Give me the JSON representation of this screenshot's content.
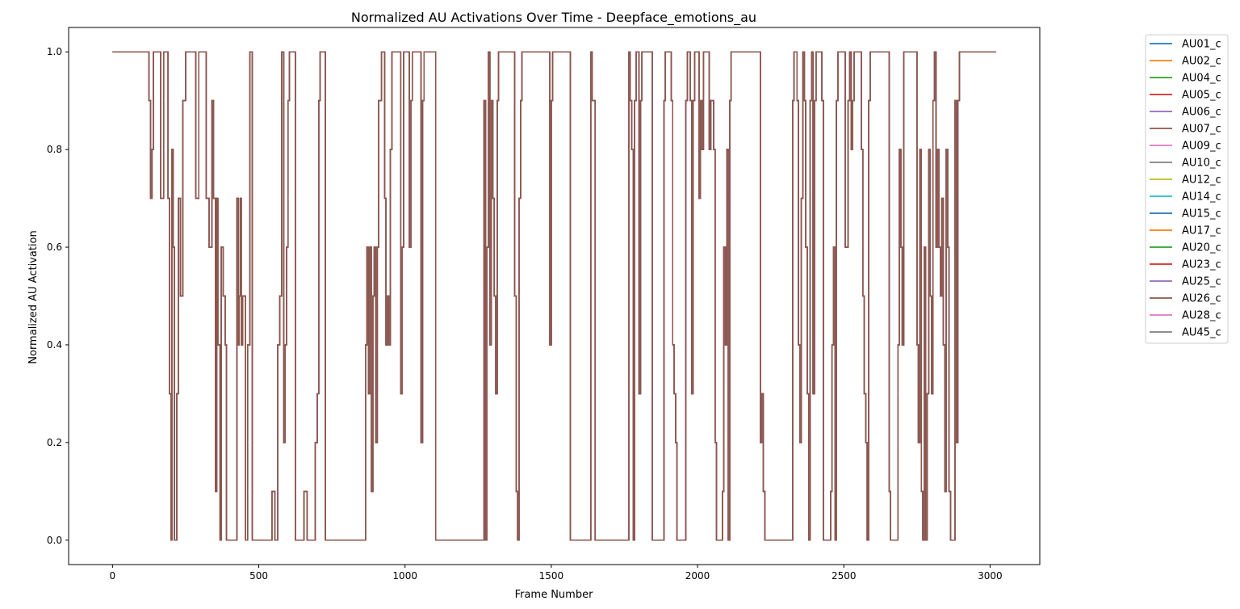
{
  "chart_data": {
    "type": "line",
    "title": "Normalized AU Activations Over Time - Deepface_emotions_au",
    "xlabel": "Frame Number",
    "ylabel": "Normalized AU Activation",
    "xlim": [
      -150,
      3170
    ],
    "ylim": [
      -0.05,
      1.05
    ],
    "xticks": [
      0,
      500,
      1000,
      1500,
      2000,
      2500,
      3000
    ],
    "yticks": [
      0.0,
      0.2,
      0.4,
      0.6,
      0.8,
      1.0
    ],
    "xtick_labels": [
      "0",
      "500",
      "1000",
      "1500",
      "2000",
      "2500",
      "3000"
    ],
    "ytick_labels": [
      "0.0",
      "0.2",
      "0.4",
      "0.6",
      "0.8",
      "1.0"
    ],
    "grid": false,
    "legend_position": "outside-right-top",
    "line_style": "step",
    "visible_series_color": "#8c564b",
    "series": [
      {
        "name": "AU01_c",
        "color": "#1f77b4"
      },
      {
        "name": "AU02_c",
        "color": "#ff7f0e"
      },
      {
        "name": "AU04_c",
        "color": "#2ca02c"
      },
      {
        "name": "AU05_c",
        "color": "#d62728"
      },
      {
        "name": "AU06_c",
        "color": "#9467bd"
      },
      {
        "name": "AU07_c",
        "color": "#8c564b"
      },
      {
        "name": "AU09_c",
        "color": "#e377c2"
      },
      {
        "name": "AU10_c",
        "color": "#7f7f7f"
      },
      {
        "name": "AU12_c",
        "color": "#bcbd22"
      },
      {
        "name": "AU14_c",
        "color": "#17becf"
      },
      {
        "name": "AU15_c",
        "color": "#1f77b4"
      },
      {
        "name": "AU17_c",
        "color": "#ff7f0e"
      },
      {
        "name": "AU20_c",
        "color": "#2ca02c"
      },
      {
        "name": "AU23_c",
        "color": "#d62728"
      },
      {
        "name": "AU25_c",
        "color": "#9467bd"
      },
      {
        "name": "AU26_c",
        "color": "#8c564b"
      },
      {
        "name": "AU28_c",
        "color": "#e377c2"
      },
      {
        "name": "AU45_c",
        "color": "#7f7f7f"
      }
    ],
    "points": [
      [
        0,
        1.0
      ],
      [
        120,
        1.0
      ],
      [
        125,
        0.9
      ],
      [
        130,
        0.7
      ],
      [
        135,
        0.8
      ],
      [
        140,
        1.0
      ],
      [
        160,
        1.0
      ],
      [
        165,
        0.7
      ],
      [
        175,
        1.0
      ],
      [
        185,
        1.0
      ],
      [
        190,
        0.7
      ],
      [
        195,
        0.3
      ],
      [
        200,
        0.0
      ],
      [
        203,
        0.8
      ],
      [
        207,
        0.6
      ],
      [
        212,
        0.0
      ],
      [
        220,
        0.3
      ],
      [
        225,
        0.7
      ],
      [
        232,
        0.5
      ],
      [
        240,
        0.9
      ],
      [
        250,
        1.0
      ],
      [
        280,
        1.0
      ],
      [
        285,
        0.7
      ],
      [
        295,
        1.0
      ],
      [
        315,
        1.0
      ],
      [
        320,
        0.7
      ],
      [
        330,
        0.6
      ],
      [
        340,
        0.9
      ],
      [
        345,
        0.7
      ],
      [
        352,
        0.1
      ],
      [
        356,
        0.7
      ],
      [
        360,
        0.4
      ],
      [
        368,
        0.0
      ],
      [
        372,
        0.6
      ],
      [
        378,
        0.5
      ],
      [
        385,
        0.4
      ],
      [
        390,
        0.0
      ],
      [
        420,
        0.0
      ],
      [
        425,
        0.7
      ],
      [
        430,
        0.4
      ],
      [
        433,
        0.5
      ],
      [
        437,
        0.7
      ],
      [
        440,
        0.4
      ],
      [
        445,
        0.5
      ],
      [
        455,
        0.0
      ],
      [
        462,
        0.4
      ],
      [
        470,
        1.0
      ],
      [
        478,
        0.0
      ],
      [
        540,
        0.0
      ],
      [
        545,
        0.1
      ],
      [
        555,
        0.0
      ],
      [
        565,
        0.4
      ],
      [
        572,
        0.5
      ],
      [
        578,
        1.0
      ],
      [
        585,
        0.2
      ],
      [
        590,
        0.4
      ],
      [
        595,
        0.6
      ],
      [
        600,
        0.9
      ],
      [
        605,
        1.0
      ],
      [
        615,
        1.0
      ],
      [
        625,
        0.0
      ],
      [
        650,
        0.0
      ],
      [
        655,
        0.1
      ],
      [
        665,
        0.0
      ],
      [
        690,
        0.0
      ],
      [
        693,
        0.2
      ],
      [
        700,
        0.3
      ],
      [
        705,
        0.9
      ],
      [
        710,
        1.0
      ],
      [
        720,
        1.0
      ],
      [
        728,
        0.0
      ],
      [
        860,
        0.0
      ],
      [
        865,
        0.4
      ],
      [
        870,
        0.6
      ],
      [
        875,
        0.3
      ],
      [
        880,
        0.6
      ],
      [
        885,
        0.1
      ],
      [
        890,
        0.5
      ],
      [
        895,
        0.6
      ],
      [
        900,
        0.2
      ],
      [
        905,
        0.6
      ],
      [
        910,
        0.9
      ],
      [
        920,
        1.0
      ],
      [
        930,
        0.7
      ],
      [
        935,
        0.4
      ],
      [
        940,
        0.5
      ],
      [
        945,
        0.4
      ],
      [
        950,
        0.8
      ],
      [
        955,
        1.0
      ],
      [
        980,
        1.0
      ],
      [
        985,
        0.3
      ],
      [
        990,
        0.6
      ],
      [
        995,
        1.0
      ],
      [
        1010,
        1.0
      ],
      [
        1015,
        0.6
      ],
      [
        1020,
        0.9
      ],
      [
        1025,
        1.0
      ],
      [
        1050,
        1.0
      ],
      [
        1055,
        0.2
      ],
      [
        1060,
        0.9
      ],
      [
        1065,
        1.0
      ],
      [
        1100,
        1.0
      ],
      [
        1105,
        0.0
      ],
      [
        1265,
        0.0
      ],
      [
        1270,
        0.9
      ],
      [
        1275,
        0.0
      ],
      [
        1280,
        0.6
      ],
      [
        1285,
        1.0
      ],
      [
        1290,
        0.4
      ],
      [
        1295,
        0.9
      ],
      [
        1300,
        0.7
      ],
      [
        1305,
        0.5
      ],
      [
        1310,
        0.3
      ],
      [
        1315,
        0.9
      ],
      [
        1320,
        1.0
      ],
      [
        1370,
        1.0
      ],
      [
        1375,
        0.5
      ],
      [
        1380,
        0.1
      ],
      [
        1385,
        0.0
      ],
      [
        1390,
        0.7
      ],
      [
        1395,
        0.9
      ],
      [
        1400,
        1.0
      ],
      [
        1490,
        1.0
      ],
      [
        1495,
        0.4
      ],
      [
        1500,
        0.9
      ],
      [
        1505,
        1.0
      ],
      [
        1560,
        1.0
      ],
      [
        1565,
        0.0
      ],
      [
        1630,
        0.0
      ],
      [
        1635,
        1.0
      ],
      [
        1640,
        0.9
      ],
      [
        1650,
        0.0
      ],
      [
        1760,
        0.0
      ],
      [
        1765,
        1.0
      ],
      [
        1770,
        0.9
      ],
      [
        1775,
        0.8
      ],
      [
        1780,
        0.0
      ],
      [
        1785,
        0.9
      ],
      [
        1790,
        1.0
      ],
      [
        1800,
        0.3
      ],
      [
        1805,
        0.9
      ],
      [
        1810,
        1.0
      ],
      [
        1840,
        1.0
      ],
      [
        1845,
        0.0
      ],
      [
        1880,
        0.0
      ],
      [
        1885,
        0.9
      ],
      [
        1890,
        1.0
      ],
      [
        1905,
        1.0
      ],
      [
        1910,
        0.9
      ],
      [
        1915,
        0.4
      ],
      [
        1920,
        0.3
      ],
      [
        1925,
        0.2
      ],
      [
        1930,
        0.0
      ],
      [
        1955,
        0.0
      ],
      [
        1960,
        0.9
      ],
      [
        1965,
        1.0
      ],
      [
        1975,
        0.9
      ],
      [
        1980,
        0.3
      ],
      [
        1985,
        0.9
      ],
      [
        1990,
        1.0
      ],
      [
        2000,
        1.0
      ],
      [
        2005,
        0.7
      ],
      [
        2010,
        0.9
      ],
      [
        2015,
        0.8
      ],
      [
        2020,
        1.0
      ],
      [
        2035,
        1.0
      ],
      [
        2040,
        0.8
      ],
      [
        2045,
        0.9
      ],
      [
        2055,
        0.8
      ],
      [
        2060,
        0.2
      ],
      [
        2065,
        0.0
      ],
      [
        2080,
        0.0
      ],
      [
        2085,
        0.1
      ],
      [
        2090,
        0.6
      ],
      [
        2095,
        0.4
      ],
      [
        2100,
        0.8
      ],
      [
        2105,
        0.0
      ],
      [
        2110,
        0.9
      ],
      [
        2115,
        1.0
      ],
      [
        2210,
        1.0
      ],
      [
        2215,
        0.2
      ],
      [
        2220,
        0.3
      ],
      [
        2225,
        0.1
      ],
      [
        2230,
        0.0
      ],
      [
        2320,
        0.0
      ],
      [
        2325,
        0.9
      ],
      [
        2330,
        1.0
      ],
      [
        2340,
        0.9
      ],
      [
        2345,
        0.4
      ],
      [
        2350,
        0.2
      ],
      [
        2355,
        0.7
      ],
      [
        2360,
        1.0
      ],
      [
        2365,
        0.9
      ],
      [
        2370,
        0.6
      ],
      [
        2375,
        0.3
      ],
      [
        2380,
        0.0
      ],
      [
        2385,
        0.9
      ],
      [
        2390,
        1.0
      ],
      [
        2395,
        0.3
      ],
      [
        2400,
        0.9
      ],
      [
        2405,
        1.0
      ],
      [
        2420,
        1.0
      ],
      [
        2425,
        0.9
      ],
      [
        2430,
        0.0
      ],
      [
        2450,
        0.0
      ],
      [
        2455,
        0.1
      ],
      [
        2460,
        0.4
      ],
      [
        2465,
        0.6
      ],
      [
        2470,
        0.0
      ],
      [
        2475,
        0.9
      ],
      [
        2480,
        1.0
      ],
      [
        2500,
        1.0
      ],
      [
        2505,
        0.6
      ],
      [
        2515,
        0.9
      ],
      [
        2520,
        1.0
      ],
      [
        2525,
        0.8
      ],
      [
        2530,
        0.9
      ],
      [
        2535,
        1.0
      ],
      [
        2555,
        1.0
      ],
      [
        2560,
        0.8
      ],
      [
        2565,
        0.5
      ],
      [
        2570,
        0.3
      ],
      [
        2575,
        0.2
      ],
      [
        2580,
        0.0
      ],
      [
        2585,
        0.9
      ],
      [
        2590,
        1.0
      ],
      [
        2650,
        1.0
      ],
      [
        2655,
        0.1
      ],
      [
        2660,
        0.0
      ],
      [
        2680,
        0.0
      ],
      [
        2685,
        0.4
      ],
      [
        2690,
        0.8
      ],
      [
        2695,
        0.6
      ],
      [
        2700,
        0.4
      ],
      [
        2705,
        1.0
      ],
      [
        2745,
        1.0
      ],
      [
        2750,
        0.4
      ],
      [
        2755,
        0.2
      ],
      [
        2760,
        0.8
      ],
      [
        2765,
        0.1
      ],
      [
        2770,
        0.0
      ],
      [
        2775,
        0.6
      ],
      [
        2780,
        0.0
      ],
      [
        2785,
        0.3
      ],
      [
        2790,
        0.8
      ],
      [
        2795,
        0.5
      ],
      [
        2800,
        0.3
      ],
      [
        2805,
        0.9
      ],
      [
        2810,
        1.0
      ],
      [
        2815,
        0.6
      ],
      [
        2820,
        0.8
      ],
      [
        2825,
        0.6
      ],
      [
        2830,
        0.5
      ],
      [
        2835,
        0.7
      ],
      [
        2840,
        0.4
      ],
      [
        2845,
        0.1
      ],
      [
        2850,
        0.8
      ],
      [
        2855,
        0.6
      ],
      [
        2860,
        0.1
      ],
      [
        2865,
        0.0
      ],
      [
        2875,
        0.0
      ],
      [
        2880,
        0.9
      ],
      [
        2885,
        0.2
      ],
      [
        2890,
        0.9
      ],
      [
        2895,
        1.0
      ],
      [
        3020,
        1.0
      ]
    ]
  }
}
